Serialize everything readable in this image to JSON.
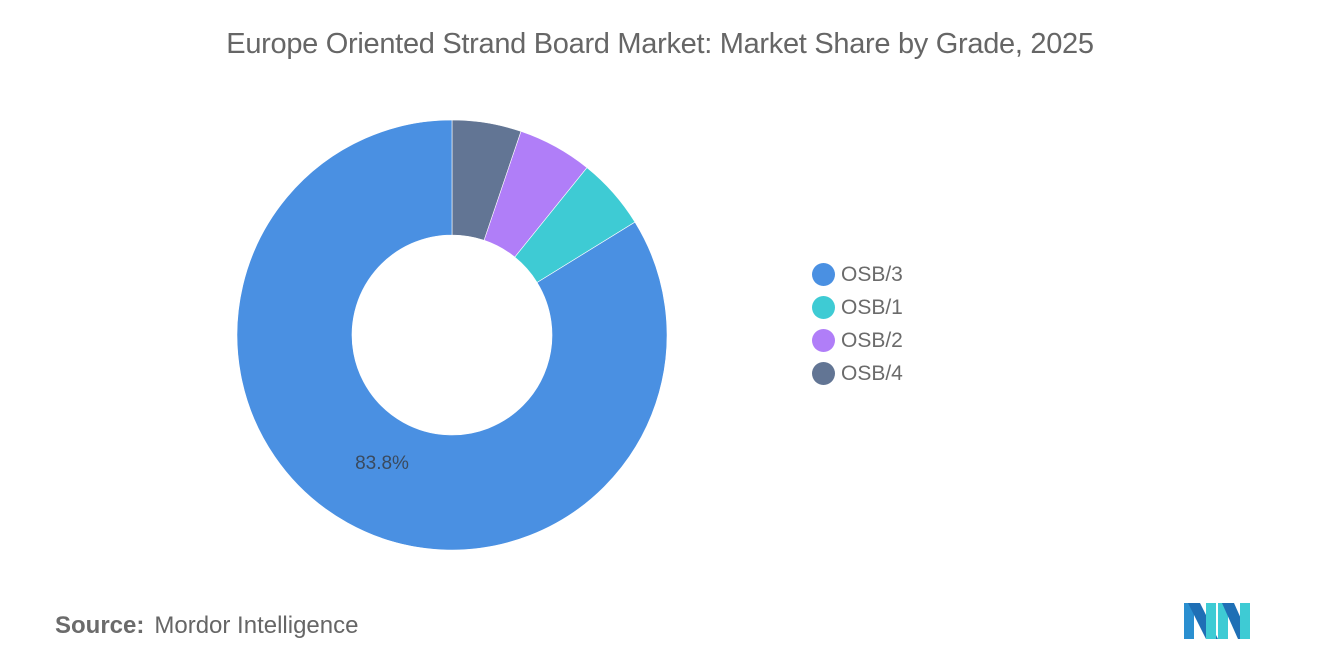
{
  "title": "Europe Oriented Strand Board Market: Market Share by Grade, 2025",
  "source": {
    "label": "Source:",
    "value": "Mordor Intelligence"
  },
  "legend": [
    {
      "label": "OSB/3",
      "color": "#4a90e2"
    },
    {
      "label": "OSB/1",
      "color": "#3ecbd4"
    },
    {
      "label": "OSB/2",
      "color": "#b07ef8"
    },
    {
      "label": "OSB/4",
      "color": "#627594"
    }
  ],
  "data_label": "83.8%",
  "chart_data": {
    "type": "pie",
    "subtype": "donut",
    "title": "Europe Oriented Strand Board Market: Market Share by Grade, 2025",
    "categories": [
      "OSB/3",
      "OSB/1",
      "OSB/2",
      "OSB/4"
    ],
    "values": [
      83.8,
      5.4,
      5.6,
      5.2
    ],
    "unit": "%",
    "colors": [
      "#4a90e2",
      "#3ecbd4",
      "#b07ef8",
      "#627594"
    ],
    "annotations": [
      "83.8%"
    ],
    "legend_position": "right",
    "drawing_order_clockwise_from_top": [
      "OSB/4",
      "OSB/2",
      "OSB/1",
      "OSB/3"
    ]
  }
}
